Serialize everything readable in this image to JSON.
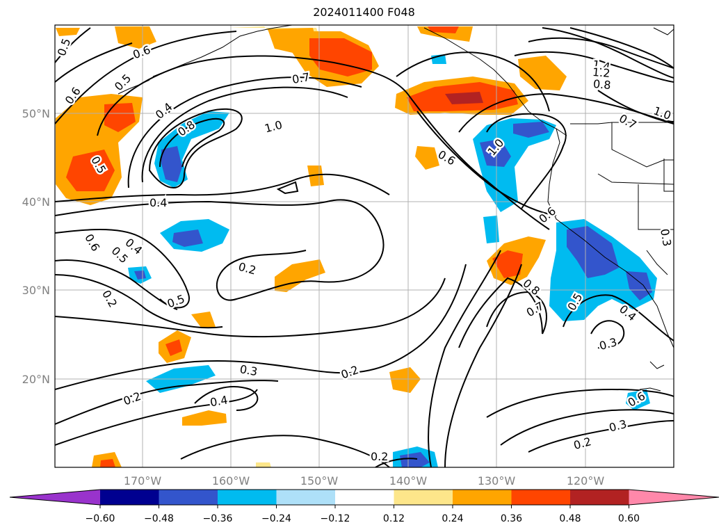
{
  "title": "2024011400 F048",
  "map": {
    "lat_labels": [
      "50°N",
      "40°N",
      "30°N",
      "20°N"
    ],
    "lon_labels": [
      "170°W",
      "160°W",
      "150°W",
      "140°W",
      "130°W",
      "120°W"
    ]
  },
  "contour_labels": [
    "0.5",
    "0.6",
    "0.6",
    "0.5",
    "0.4",
    "0.8",
    "0.7",
    "1.0",
    "0.5",
    "0.4",
    "0.6",
    "0.5",
    "0.4",
    "0.2",
    "0.5",
    "0.2",
    "0.3",
    "0.2",
    "0.2",
    "0.4",
    "0.2",
    "1.4",
    "1.2",
    "0.8",
    "1.0",
    "0.7",
    "1.0",
    "0.6",
    "0.6",
    "0.3",
    "0.8",
    "0.7",
    "0.5",
    "0.4",
    "0.3",
    "0.6",
    "0.3",
    "0.2"
  ],
  "colorbar": {
    "ticks": [
      "−0.60",
      "−0.48",
      "−0.36",
      "−0.24",
      "−0.12",
      "0.12",
      "0.24",
      "0.36",
      "0.48",
      "0.60"
    ],
    "colors": [
      "#9933cc",
      "#000090",
      "#3355cc",
      "#00bbf0",
      "#aee0f8",
      "#ffffff",
      "#fde68a",
      "#ffa500",
      "#ff4500",
      "#b22222",
      "#ff88aa"
    ]
  },
  "chart_data": {
    "type": "heatmap",
    "title": "2024011400 F048",
    "colorbar_ticks": [
      -0.6,
      -0.48,
      -0.36,
      -0.24,
      -0.12,
      0.12,
      0.24,
      0.36,
      0.48,
      0.6
    ],
    "lon_ticks": [
      -170,
      -160,
      -150,
      -140,
      -130,
      -120
    ],
    "lat_ticks": [
      20,
      30,
      40,
      50
    ],
    "grid": true
  }
}
